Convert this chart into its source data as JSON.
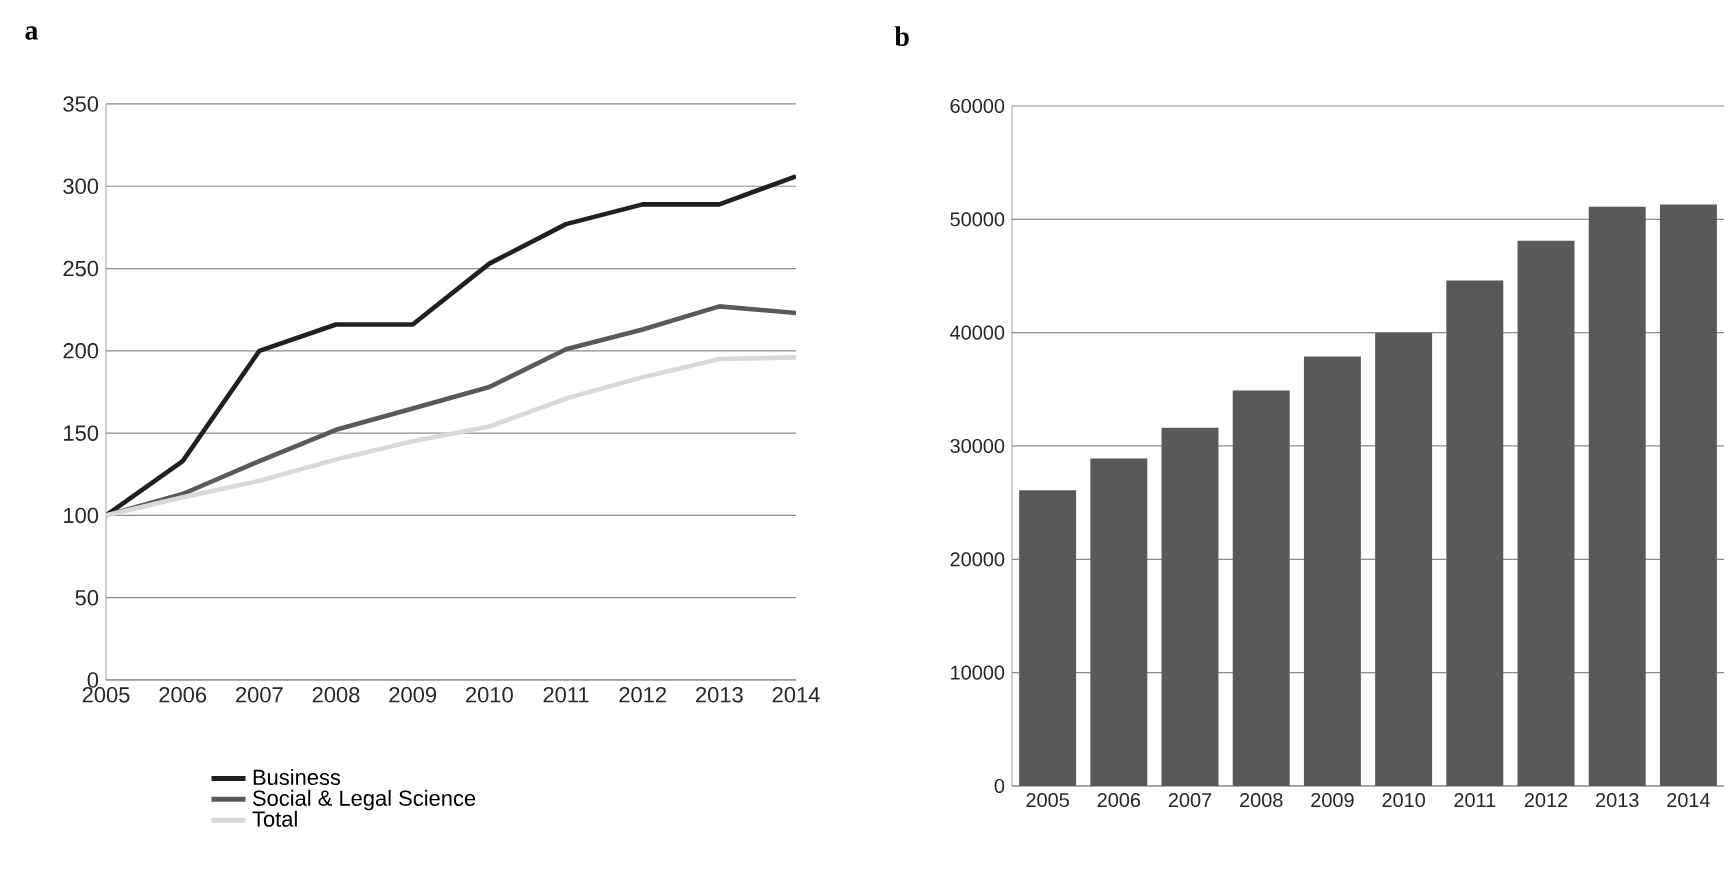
{
  "chart_data": [
    {
      "type": "line",
      "title": "a",
      "categories": [
        "2005",
        "2006",
        "2007",
        "2008",
        "2009",
        "2010",
        "2011",
        "2012",
        "2013",
        "2014"
      ],
      "ylim": [
        0,
        350
      ],
      "yticks": [
        0,
        50,
        100,
        150,
        200,
        250,
        300,
        350
      ],
      "grid": "y",
      "legend": "bottom",
      "series": [
        {
          "name": "Business",
          "color": "#231f20",
          "values": [
            100,
            133,
            200,
            216,
            216,
            253,
            277,
            289,
            289,
            306
          ]
        },
        {
          "name": "Social & Legal Science",
          "color": "#58595b",
          "values": [
            100,
            113,
            133,
            152,
            165,
            178,
            201,
            213,
            227,
            223
          ]
        },
        {
          "name": "Total",
          "color": "#d9d9d9",
          "values": [
            100,
            111,
            121,
            134,
            145,
            154,
            171,
            184,
            195,
            196
          ]
        }
      ]
    },
    {
      "type": "bar",
      "title": "b",
      "categories": [
        "2005",
        "2006",
        "2007",
        "2008",
        "2009",
        "2010",
        "2011",
        "2012",
        "2013",
        "2014"
      ],
      "ylim": [
        0,
        60000
      ],
      "yticks": [
        0,
        10000,
        20000,
        30000,
        40000,
        50000,
        60000
      ],
      "grid": "y",
      "color": "#58595b",
      "values": [
        26100,
        28900,
        31600,
        34900,
        37900,
        40000,
        44600,
        48100,
        51100,
        51300
      ]
    }
  ]
}
